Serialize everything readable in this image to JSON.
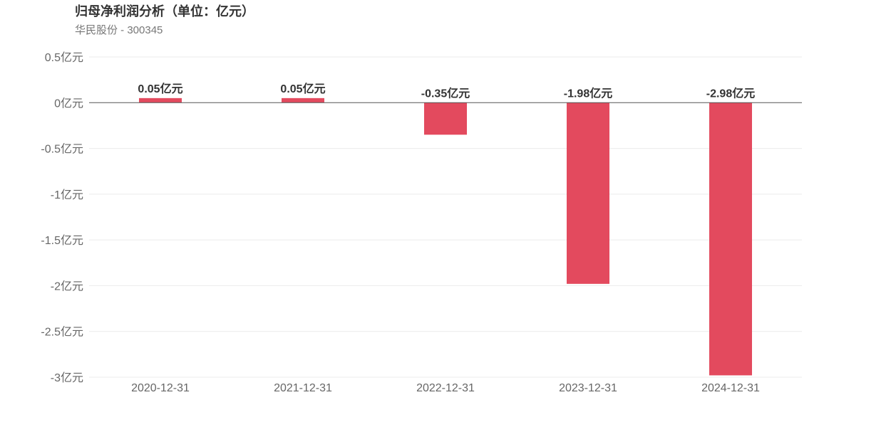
{
  "title": "归母净利润分析（单位：亿元）",
  "subtitle": "华民股份 - 300345",
  "chart_data": {
    "type": "bar",
    "categories": [
      "2020-12-31",
      "2021-12-31",
      "2022-12-31",
      "2023-12-31",
      "2024-12-31"
    ],
    "values": [
      0.05,
      0.05,
      -0.35,
      -1.98,
      -2.98
    ],
    "data_labels": [
      "0.05亿元",
      "0.05亿元",
      "-0.35亿元",
      "-1.98亿元",
      "-2.98亿元"
    ],
    "ylim": [
      -3,
      0.5
    ],
    "yticks": [
      0.5,
      0,
      -0.5,
      -1,
      -1.5,
      -2,
      -2.5,
      -3
    ],
    "ytick_labels": [
      "0.5亿元",
      "0亿元",
      "-0.5亿元",
      "-1亿元",
      "-1.5亿元",
      "-2亿元",
      "-2.5亿元",
      "-3亿元"
    ],
    "bar_color": "#e34a5e",
    "grid": true,
    "legend": "none"
  }
}
